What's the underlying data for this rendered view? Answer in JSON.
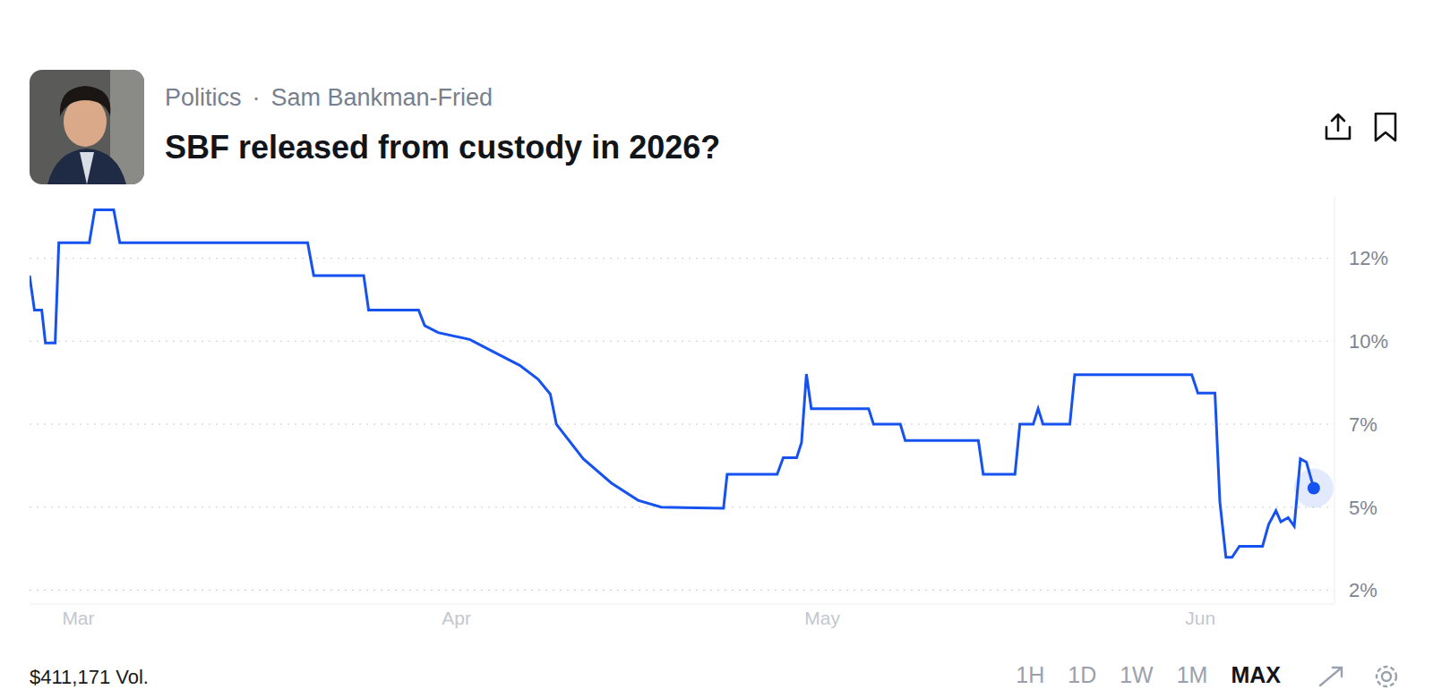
{
  "header": {
    "category": "Politics",
    "separator": "·",
    "topic": "Sam Bankman-Fried",
    "title": "SBF released from custody in 2026?"
  },
  "chart_data": {
    "type": "line",
    "color": "#1652f0",
    "x": [
      -4,
      -3.6,
      -3,
      -2.7,
      -1.9,
      -1.6,
      0.9,
      1.35,
      2.9,
      3.4,
      18.8,
      19.3,
      23.4,
      23.8,
      27.9,
      28.4,
      29.5,
      32.1,
      34,
      36.2,
      37.7,
      38.7,
      39.2,
      41.4,
      43.7,
      45.9,
      47.8,
      52.9,
      53.2,
      57.3,
      57.8,
      58.9,
      59.3,
      59.7,
      60.1,
      64.8,
      65.2,
      67.4,
      67.8,
      73.8,
      74.2,
      76.8,
      77.2,
      78.3,
      78.7,
      79.1,
      81.3,
      81.7,
      91.3,
      91.8,
      93.2,
      93.6,
      94.1,
      94.6,
      95.2,
      97.1,
      97.6,
      98.2,
      98.6,
      99.2,
      99.7,
      100.2,
      100.7,
      101.3
    ],
    "values": [
      11.5,
      10.5,
      10.5,
      9.55,
      9.55,
      12.45,
      12.45,
      13.4,
      13.4,
      12.45,
      12.45,
      11.5,
      11.5,
      10.5,
      10.5,
      10.05,
      9.85,
      9.65,
      9.3,
      8.9,
      8.5,
      8.07,
      7.2,
      6.2,
      5.5,
      5,
      4.8,
      4.77,
      5.75,
      5.75,
      6.23,
      6.23,
      6.67,
      8.65,
      7.65,
      7.65,
      7.2,
      7.2,
      6.73,
      6.73,
      5.75,
      5.75,
      7.2,
      7.2,
      7.65,
      7.2,
      7.2,
      8.63,
      8.63,
      8.1,
      8.1,
      4.96,
      3.35,
      3.35,
      3.67,
      3.67,
      4.3,
      4.7,
      4.38,
      4.5,
      4.25,
      6.2,
      6.1,
      5.35
    ],
    "xlim": [
      -4,
      103
    ],
    "xticks": [
      {
        "value": 0,
        "label": "Mar"
      },
      {
        "value": 31,
        "label": "Apr"
      },
      {
        "value": 61,
        "label": "May"
      },
      {
        "value": 92,
        "label": "Jun"
      }
    ],
    "ylim": [
      2,
      13.8
    ],
    "yticks": [
      {
        "value": 2.4,
        "label": "2%"
      },
      {
        "value": 4.8,
        "label": "5%"
      },
      {
        "value": 7.2,
        "label": "7%"
      },
      {
        "value": 9.6,
        "label": "10%"
      },
      {
        "value": 12,
        "label": "12%"
      }
    ],
    "grid": true
  },
  "footer": {
    "volume": "$411,171 Vol.",
    "ranges": [
      "1H",
      "1D",
      "1W",
      "1M",
      "MAX"
    ],
    "active": "MAX"
  }
}
